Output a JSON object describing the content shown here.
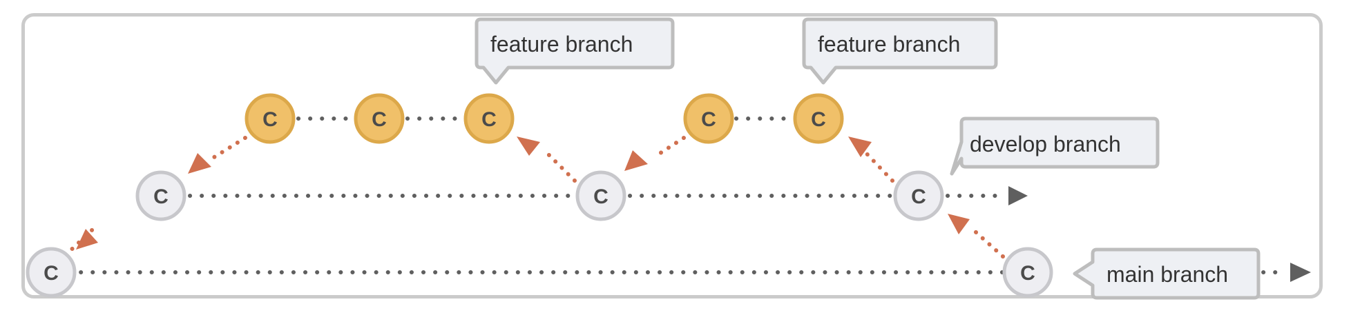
{
  "commit_label": "C",
  "callouts": {
    "feature_1": "feature branch",
    "feature_2": "feature branch",
    "develop": "develop branch",
    "main": "main branch"
  },
  "colors": {
    "main_node_fill": "#eeeef2",
    "main_node_stroke": "#c7c7cb",
    "feature_node_fill": "#f0c069",
    "feature_node_stroke": "#dca84a",
    "node_text": "#4b4b4b",
    "timeline": "#5f5f5f",
    "merge_link": "#d0704f",
    "callout_fill": "#eef0f4",
    "callout_stroke": "#bdbdbd"
  }
}
